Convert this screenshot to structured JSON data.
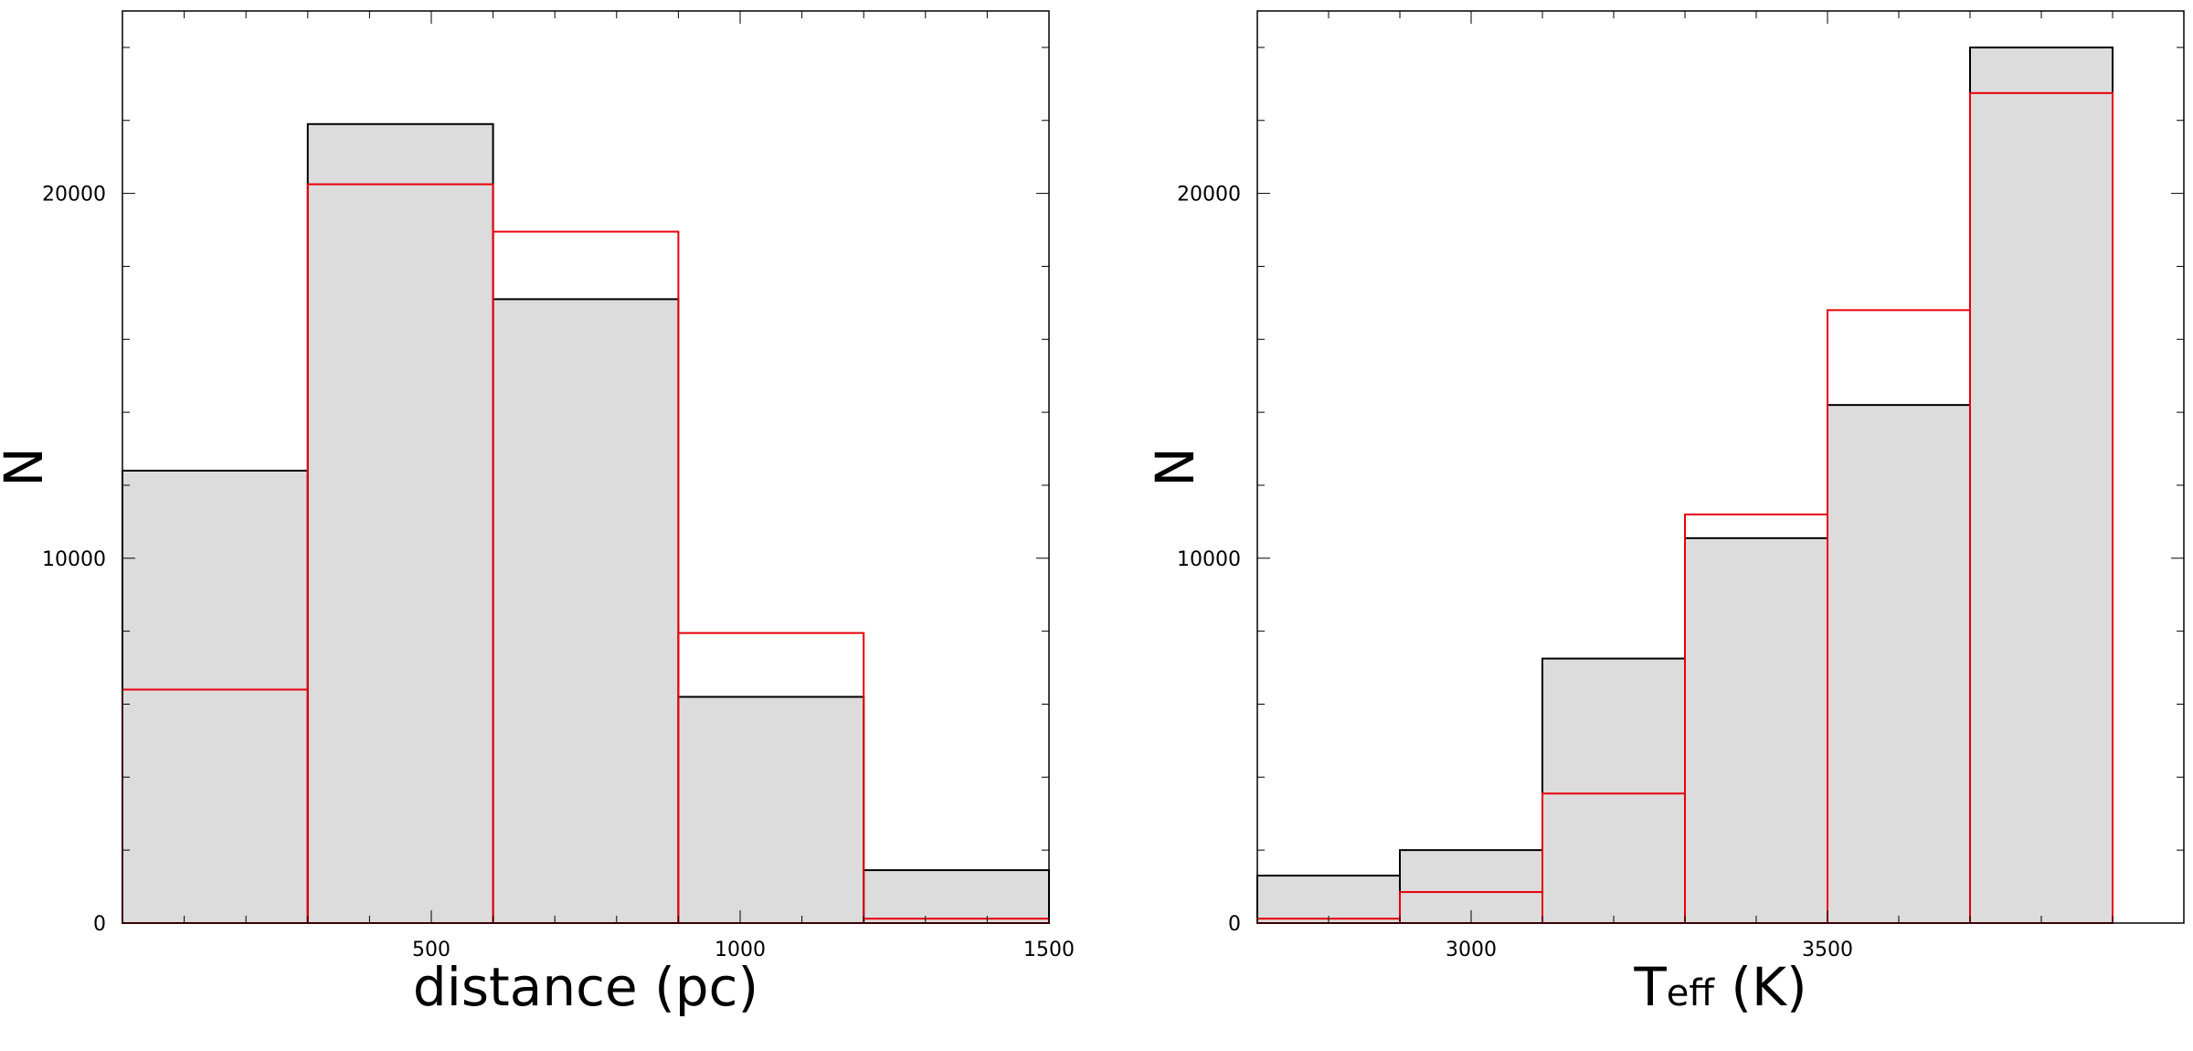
{
  "chart_data": [
    {
      "type": "bar",
      "xlabel": "distance (pc)",
      "ylabel": "N",
      "xlim": [
        0,
        1500
      ],
      "ylim": [
        0,
        25000
      ],
      "bins": [
        [
          0,
          300
        ],
        [
          300,
          600
        ],
        [
          600,
          900
        ],
        [
          900,
          1200
        ],
        [
          1200,
          1500
        ]
      ],
      "x_ticks": [
        500,
        1000,
        1500
      ],
      "y_ticks": [
        0,
        10000,
        20000
      ],
      "series": [
        {
          "values": [
            12400,
            21900,
            17100,
            6200,
            1450
          ],
          "color": "#000000",
          "fill": "#dcdcdc"
        },
        {
          "values": [
            6400,
            20250,
            18950,
            7950,
            120
          ],
          "color": "#e8000b"
        }
      ]
    },
    {
      "type": "bar",
      "xlabel": "Teff (K)",
      "xlabel_main": "T",
      "xlabel_sub": "eff",
      "xlabel_unit": "(K)",
      "ylabel": "N",
      "xlim": [
        2700,
        4000
      ],
      "ylim": [
        0,
        25000
      ],
      "bins": [
        [
          2700,
          2900
        ],
        [
          2900,
          3100
        ],
        [
          3100,
          3300
        ],
        [
          3300,
          3500
        ],
        [
          3500,
          3700
        ],
        [
          3700,
          3900
        ]
      ],
      "x_ticks": [
        3000,
        3500
      ],
      "y_ticks": [
        0,
        10000,
        20000
      ],
      "series": [
        {
          "values": [
            1300,
            2000,
            7250,
            10550,
            14200,
            24000
          ],
          "color": "#000000",
          "fill": "#dcdcdc"
        },
        {
          "values": [
            120,
            850,
            3550,
            11200,
            16800,
            22750
          ],
          "color": "#e8000b"
        }
      ]
    }
  ]
}
